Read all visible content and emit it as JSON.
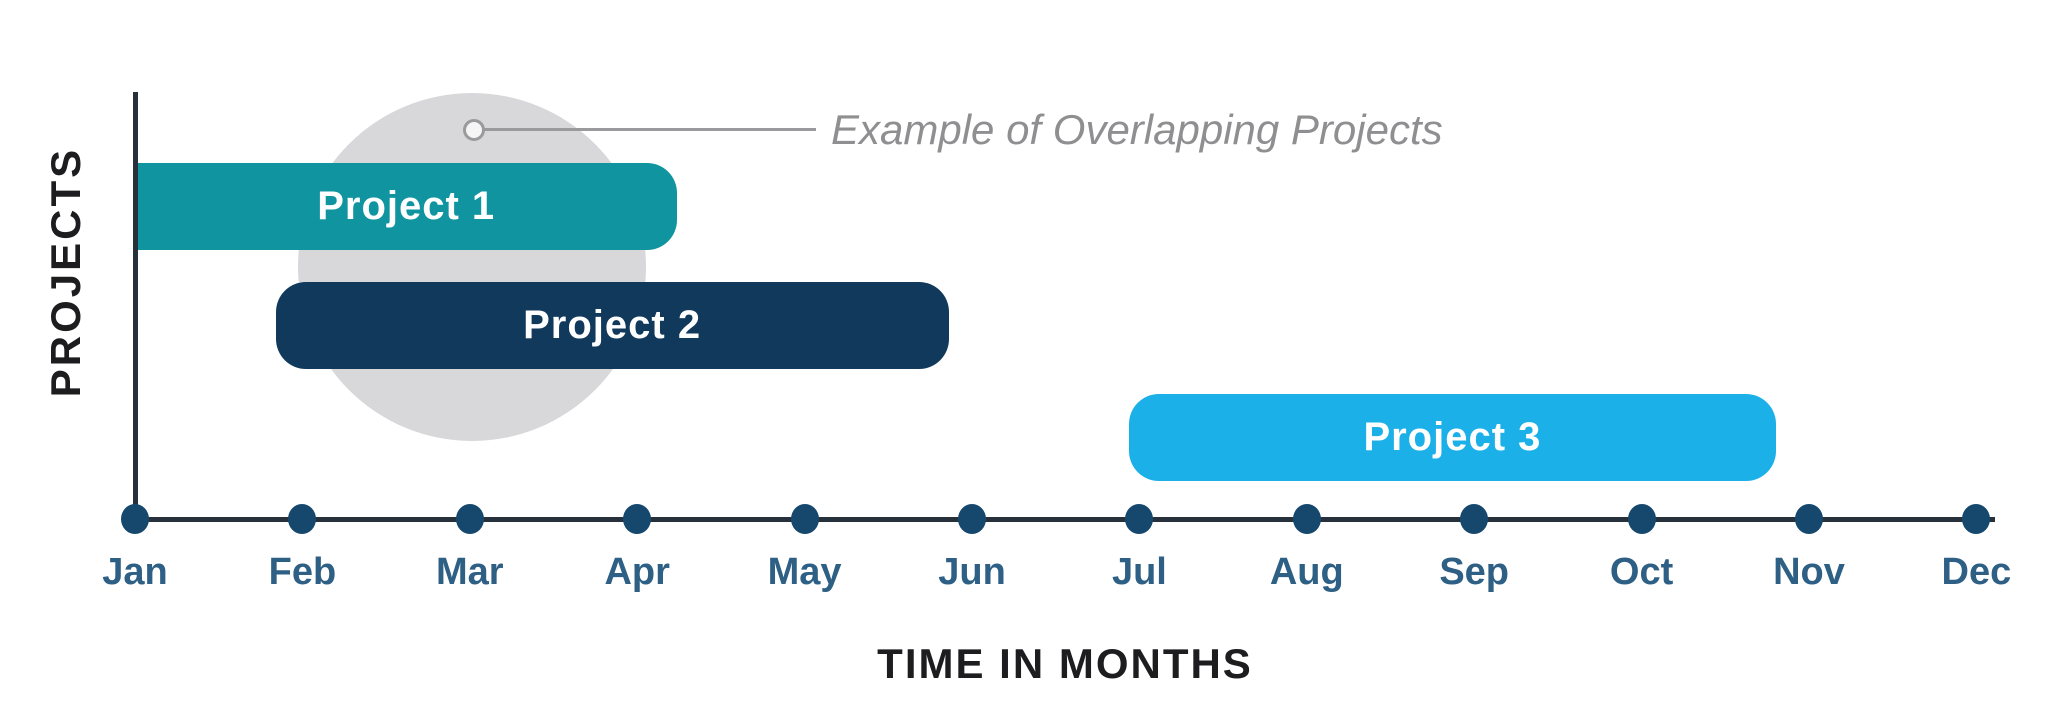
{
  "chart_data": {
    "type": "gantt",
    "xlabel": "TIME IN MONTHS",
    "ylabel": "PROJECTS",
    "x_ticks": [
      "Jan",
      "Feb",
      "Mar",
      "Apr",
      "May",
      "Jun",
      "Jul",
      "Aug",
      "Sep",
      "Oct",
      "Nov",
      "Dec"
    ],
    "x_axis_style": "dot-markers-on-line",
    "grid": false,
    "legend": null,
    "bars": [
      {
        "name": "Project 1",
        "row": 0,
        "start_month_index": 0.0,
        "end_month_index": 3.24,
        "start": "Jan",
        "end": "mid-Apr",
        "color": "#1095a0"
      },
      {
        "name": "Project 2",
        "row": 1,
        "start_month_index": 0.84,
        "end_month_index": 4.86,
        "start": "late Jan",
        "end": "late May",
        "color": "#11395c"
      },
      {
        "name": "Project 3",
        "row": 2,
        "start_month_index": 5.94,
        "end_month_index": 9.8,
        "start": "Jul",
        "end": "late Oct",
        "color": "#1cb0e8"
      }
    ],
    "annotation": {
      "text": "Example of Overlapping Projects",
      "marker": "open-circle-with-leader-line",
      "refers_to": "highlighted overlap of Project 1 and Project 2"
    }
  },
  "colors": {
    "background": "#ffffff",
    "axis": "#27313c",
    "tick_dot": "#16486e",
    "month_label": "#2e5f84",
    "axis_title": "#1d1d1f",
    "bar_label": "#ffffff",
    "annotation_text": "#8f8f91",
    "annotation_line": "#9a9a9c",
    "annotation_marker_fill": "#f5f5f6",
    "highlight_circle": "#d8d8da"
  }
}
